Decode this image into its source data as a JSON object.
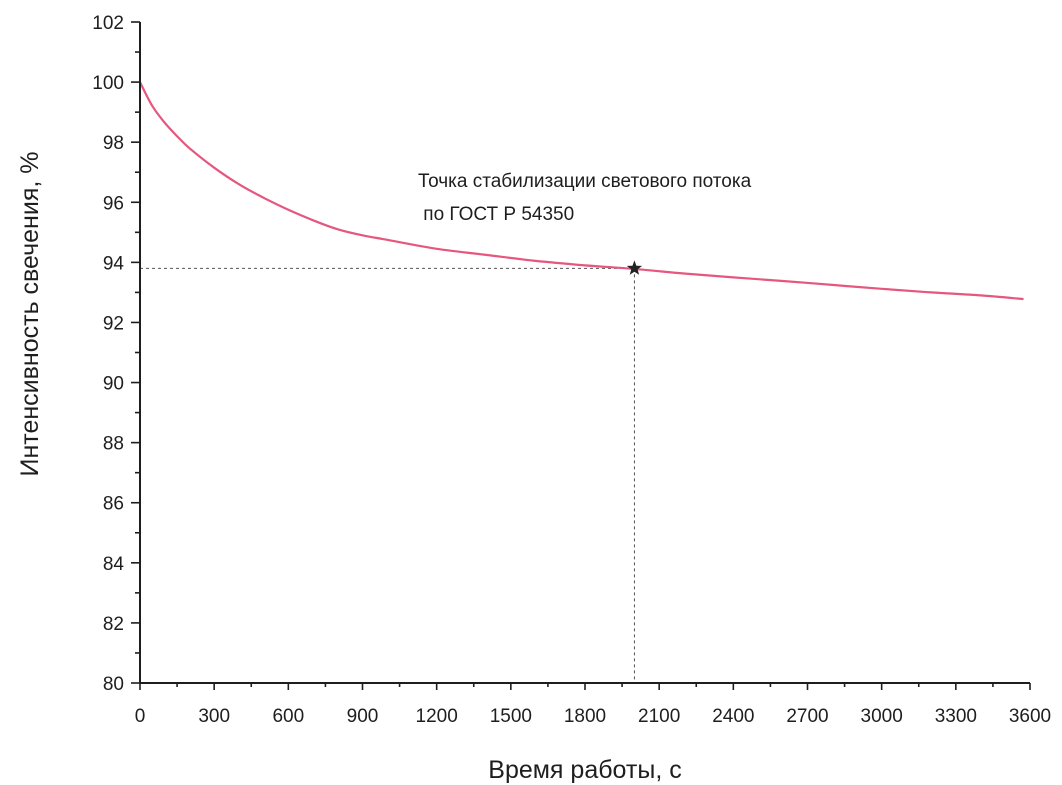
{
  "chart_data": {
    "type": "line",
    "title": "",
    "xlabel": "Время работы, с",
    "ylabel": "Интенсивность свечения, %",
    "xlim": [
      0,
      3600
    ],
    "ylim": [
      80,
      102
    ],
    "x_ticks": [
      0,
      300,
      600,
      900,
      1200,
      1500,
      1800,
      2100,
      2400,
      2700,
      3000,
      3300,
      3600
    ],
    "y_ticks": [
      80,
      82,
      84,
      86,
      88,
      90,
      92,
      94,
      96,
      98,
      100,
      102
    ],
    "grid": false,
    "series": [
      {
        "color": "#e5577f",
        "x": [
          0,
          50,
          100,
          150,
          200,
          300,
          400,
          500,
          600,
          700,
          800,
          900,
          1000,
          1200,
          1400,
          1600,
          1800,
          2000,
          2200,
          2400,
          2600,
          2800,
          3000,
          3200,
          3400,
          3570
        ],
        "y": [
          100.0,
          99.2,
          98.65,
          98.2,
          97.8,
          97.15,
          96.6,
          96.15,
          95.75,
          95.4,
          95.1,
          94.9,
          94.75,
          94.45,
          94.25,
          94.05,
          93.9,
          93.78,
          93.63,
          93.5,
          93.38,
          93.25,
          93.12,
          93.0,
          92.9,
          92.78
        ]
      }
    ],
    "annotations": [
      {
        "marker": "star",
        "marker_color": "#222222",
        "x": 2000,
        "y": 93.8,
        "guide_lines": true,
        "text_lines": [
          "Точка стабилизации светового потока",
          " по ГОСТ Р 54350"
        ]
      }
    ]
  }
}
